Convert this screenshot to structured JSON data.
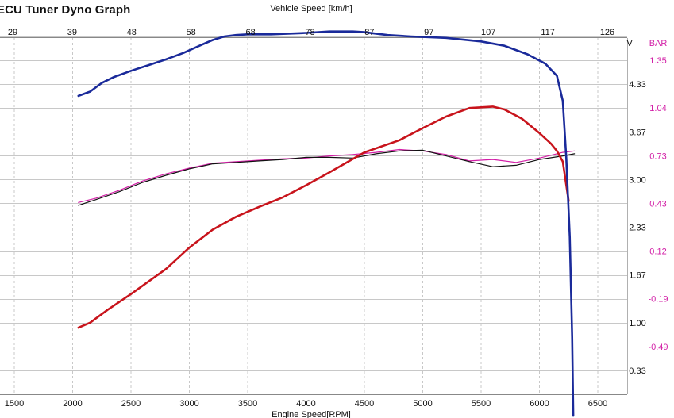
{
  "window": {
    "title": "ECU Tuner Dyno Graph"
  },
  "chart_data": {
    "type": "line",
    "title": "ECU Tuner Dyno Graph",
    "x_top_label": "Vehicle Speed [km/h]",
    "x_top_ticks": [
      "29",
      "39",
      "48",
      "58",
      "68",
      "78",
      "87",
      "97",
      "107",
      "117",
      "126"
    ],
    "xlabel": "Engine Speed[RPM]",
    "xlim": [
      1500,
      6500
    ],
    "x_ticks": [
      "1500",
      "2000",
      "2500",
      "3000",
      "3500",
      "4000",
      "4500",
      "5000",
      "5500",
      "6000",
      "6500"
    ],
    "y_left_label": "V",
    "y_left_ticks": [
      "4.33",
      "3.67",
      "3.00",
      "2.33",
      "1.67",
      "1.00",
      "0.33"
    ],
    "ylim_left": [
      0,
      5.0
    ],
    "y_right_label": "BAR",
    "y_right_ticks": [
      "1.35",
      "1.04",
      "0.73",
      "0.43",
      "0.12",
      "-0.19",
      "-0.49"
    ],
    "grid": true,
    "colors": {
      "blue": "#1a2a9a",
      "red": "#c8141c",
      "magenta": "#d21ea6",
      "black": "#111111",
      "pink_axis": "#d21ea6",
      "grid": "#c8c8c8"
    },
    "series": [
      {
        "color": "blue",
        "x": [
          2050,
          2150,
          2250,
          2350,
          2500,
          2650,
          2800,
          2950,
          3100,
          3200,
          3300,
          3400,
          3500,
          3700,
          4000,
          4200,
          4400,
          4500,
          4600,
          4700,
          4900,
          5200,
          5500,
          5700,
          5900,
          6050,
          6150,
          6200,
          6230,
          6260,
          6280,
          6290
        ],
        "y": [
          4.17,
          4.23,
          4.35,
          4.43,
          4.52,
          4.6,
          4.68,
          4.77,
          4.88,
          4.95,
          5.0,
          5.02,
          5.03,
          5.03,
          5.05,
          5.07,
          5.07,
          5.06,
          5.04,
          5.02,
          5.0,
          4.98,
          4.93,
          4.87,
          4.75,
          4.62,
          4.45,
          4.1,
          3.3,
          2.2,
          0.8,
          -0.3
        ]
      },
      {
        "color": "red",
        "x": [
          2050,
          2150,
          2300,
          2500,
          2800,
          3000,
          3200,
          3400,
          3600,
          3800,
          4000,
          4200,
          4500,
          4800,
          5000,
          5200,
          5400,
          5600,
          5700,
          5850,
          6000,
          6100,
          6150,
          6200,
          6250
        ],
        "y": [
          0.93,
          1.0,
          1.18,
          1.4,
          1.75,
          2.05,
          2.3,
          2.48,
          2.62,
          2.75,
          2.92,
          3.1,
          3.38,
          3.55,
          3.72,
          3.88,
          4.0,
          4.02,
          3.98,
          3.85,
          3.65,
          3.5,
          3.4,
          3.25,
          2.7
        ]
      },
      {
        "color": "magenta",
        "x": [
          2050,
          2200,
          2400,
          2600,
          2800,
          3000,
          3200,
          3400,
          3600,
          3800,
          4000,
          4200,
          4400,
          4600,
          4800,
          5000,
          5200,
          5400,
          5600,
          5800,
          6000,
          6200,
          6300
        ],
        "y": [
          2.68,
          2.74,
          2.85,
          2.98,
          3.08,
          3.16,
          3.23,
          3.25,
          3.27,
          3.29,
          3.3,
          3.33,
          3.35,
          3.38,
          3.42,
          3.4,
          3.35,
          3.26,
          3.28,
          3.24,
          3.3,
          3.38,
          3.4
        ]
      },
      {
        "color": "black",
        "x": [
          2050,
          2200,
          2400,
          2600,
          2800,
          3000,
          3200,
          3400,
          3600,
          3800,
          4000,
          4200,
          4400,
          4600,
          4800,
          5000,
          5200,
          5400,
          5600,
          5800,
          6000,
          6200,
          6300
        ],
        "y": [
          2.64,
          2.72,
          2.83,
          2.96,
          3.06,
          3.15,
          3.22,
          3.24,
          3.26,
          3.28,
          3.31,
          3.31,
          3.3,
          3.36,
          3.4,
          3.41,
          3.33,
          3.25,
          3.18,
          3.2,
          3.28,
          3.33,
          3.36
        ]
      }
    ]
  }
}
